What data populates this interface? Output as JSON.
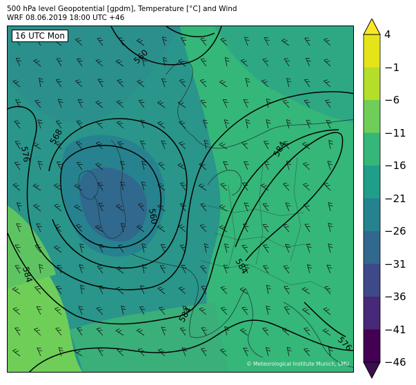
{
  "title_line1": "500 hPa level Geopotential [gpdm], Temperature [°C] and Wind",
  "title_line2": "WRF 08.06.2019 18:00 UTC +46",
  "time_label": "16 UTC Mon",
  "credit": "© Meteorological Institute Munich, LMU",
  "contour_labels": [
    "560",
    "568",
    "576",
    "560",
    "584",
    "584",
    "584",
    "584",
    "576"
  ],
  "colorbar": {
    "ticks": [
      "4",
      "−1",
      "−6",
      "−11",
      "−16",
      "−21",
      "−26",
      "−31",
      "−36",
      "−41",
      "−46"
    ],
    "bands_top_to_bottom": [
      "#e5e419",
      "#b5de2b",
      "#6ece58",
      "#35b779",
      "#1f9e89",
      "#26828e",
      "#31688e",
      "#3e4989",
      "#482878",
      "#440154"
    ],
    "arrow_top_color": "#fde725",
    "arrow_bottom_color": "#3b0f4f"
  },
  "colors": {
    "warm_south": "#6ece58",
    "mid": "#35b779",
    "teal": "#1f9e89",
    "cold_core": "#31688e"
  }
}
